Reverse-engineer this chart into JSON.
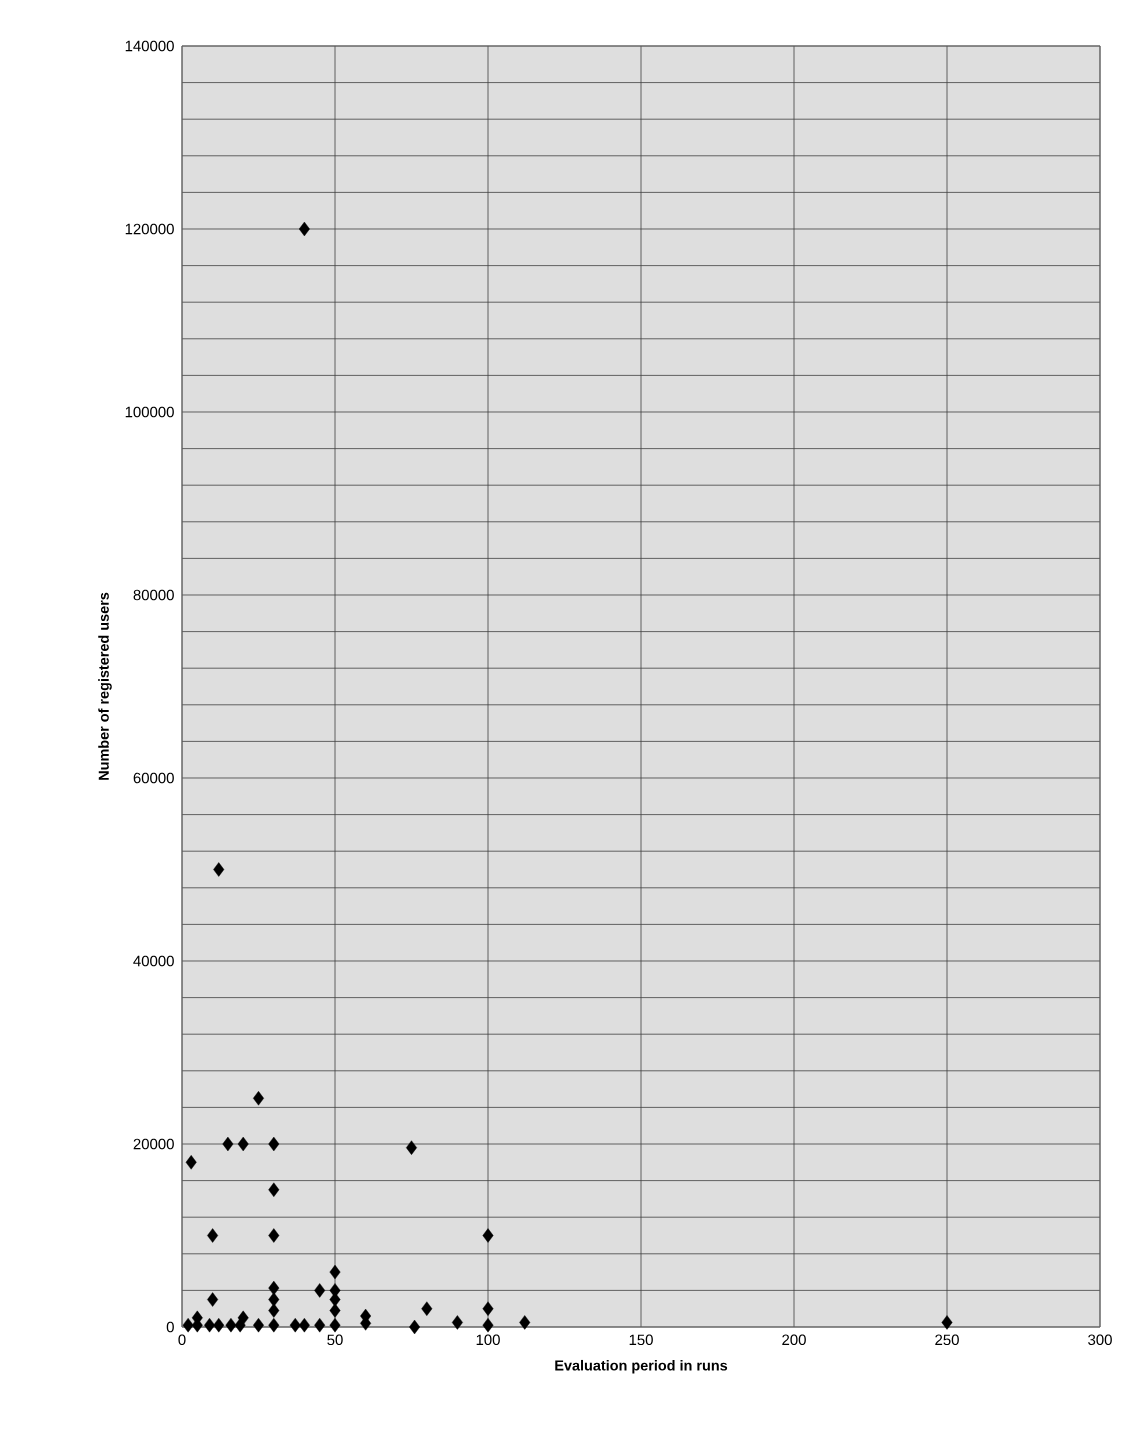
{
  "chart_data": {
    "type": "scatter",
    "xlabel": "Evaluation period in runs",
    "ylabel": "Number of registered users",
    "x": [
      40,
      12,
      25,
      15,
      20,
      30,
      75,
      3,
      30,
      10,
      30,
      100,
      50,
      30,
      45,
      50,
      10,
      30,
      50,
      30,
      50,
      80,
      100,
      60,
      60,
      5,
      20,
      2,
      5,
      9,
      12,
      16,
      19,
      25,
      30,
      37,
      40,
      45,
      50,
      76,
      90,
      100,
      112,
      250
    ],
    "values": [
      120000,
      50000,
      25000,
      20000,
      20000,
      20000,
      19600,
      18000,
      15000,
      10000,
      10000,
      10000,
      6000,
      4250,
      4000,
      4000,
      3000,
      3000,
      3000,
      1800,
      1800,
      2000,
      2000,
      1200,
      400,
      1000,
      1000,
      200,
      200,
      200,
      200,
      200,
      200,
      200,
      200,
      200,
      200,
      200,
      200,
      0,
      500,
      200,
      500,
      500
    ],
    "color": "#000000",
    "marker": "diamond",
    "grid": true,
    "xlim": [
      0,
      300
    ],
    "xticks": [
      0,
      50,
      100,
      150,
      200,
      250,
      300
    ],
    "ylim": [
      0,
      140000
    ],
    "yticks": [
      0,
      {
        "value": 4000,
        "label": null
      },
      {
        "value": 8000,
        "label": null
      },
      {
        "value": 12000,
        "label": null
      },
      {
        "value": 16000,
        "label": null
      },
      20000,
      {
        "value": 24000,
        "label": null
      },
      {
        "value": 28000,
        "label": null
      },
      {
        "value": 32000,
        "label": null
      },
      {
        "value": 36000,
        "label": null
      },
      40000,
      {
        "value": 44000,
        "label": null
      },
      {
        "value": 48000,
        "label": null
      },
      {
        "value": 52000,
        "label": null
      },
      {
        "value": 56000,
        "label": null
      },
      60000,
      {
        "value": 64000,
        "label": null
      },
      {
        "value": 68000,
        "label": null
      },
      {
        "value": 72000,
        "label": null
      },
      {
        "value": 76000,
        "label": null
      },
      80000,
      {
        "value": 84000,
        "label": null
      },
      {
        "value": 88000,
        "label": null
      },
      {
        "value": 92000,
        "label": null
      },
      {
        "value": 96000,
        "label": null
      },
      100000,
      {
        "value": 104000,
        "label": null
      },
      {
        "value": 108000,
        "label": null
      },
      {
        "value": 112000,
        "label": null
      },
      {
        "value": 116000,
        "label": null
      },
      120000,
      {
        "value": 124000,
        "label": null
      },
      {
        "value": 128000,
        "label": null
      },
      {
        "value": 132000,
        "label": null
      },
      {
        "value": 136000,
        "label": null
      },
      140000
    ]
  }
}
